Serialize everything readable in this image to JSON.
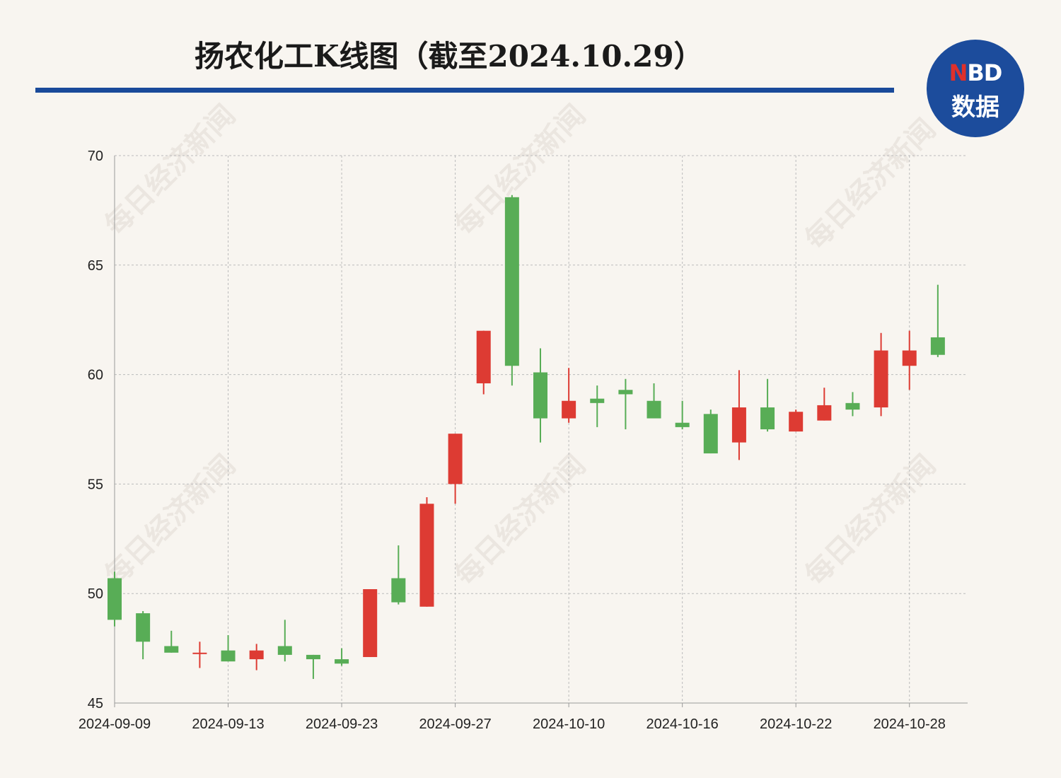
{
  "header": {
    "title": "扬农化工K线图（截至2024.10.29）"
  },
  "logo": {
    "line1_n": "N",
    "line1_rest": "BD",
    "line2": "数据"
  },
  "watermark_text": "每日经济新闻",
  "colors": {
    "up": "#dd3b33",
    "down": "#58ad56",
    "title_rule": "#1a4a9a",
    "logo_bg": "#1c4c9c",
    "background": "#f8f5f0",
    "grid": "#bbbbbb"
  },
  "chart_data": {
    "type": "candlestick",
    "title": "扬农化工K线图（截至2024.10.29）",
    "xlabel": "",
    "ylabel": "",
    "ylim": [
      45,
      70
    ],
    "yticks": [
      45,
      50,
      55,
      60,
      65,
      70
    ],
    "xtick_labels": [
      "2024-09-09",
      "2024-09-13",
      "2024-09-23",
      "2024-09-27",
      "2024-10-10",
      "2024-10-16",
      "2024-10-22",
      "2024-10-28"
    ],
    "xtick_indices": [
      0,
      4,
      8,
      12,
      16,
      20,
      24,
      28
    ],
    "grid": true,
    "legend": "none",
    "candles": [
      {
        "open": 50.7,
        "close": 48.8,
        "high": 51.0,
        "low": 48.5
      },
      {
        "open": 49.1,
        "close": 47.8,
        "high": 49.2,
        "low": 47.0
      },
      {
        "open": 47.6,
        "close": 47.3,
        "high": 48.3,
        "low": 47.3
      },
      {
        "open": 47.3,
        "close": 47.3,
        "high": 47.8,
        "low": 46.6
      },
      {
        "open": 47.4,
        "close": 46.9,
        "high": 48.1,
        "low": 46.9
      },
      {
        "open": 47.0,
        "close": 47.4,
        "high": 47.7,
        "low": 46.5
      },
      {
        "open": 47.6,
        "close": 47.2,
        "high": 48.8,
        "low": 46.9
      },
      {
        "open": 47.2,
        "close": 47.0,
        "high": 47.2,
        "low": 46.1
      },
      {
        "open": 47.0,
        "close": 46.8,
        "high": 47.5,
        "low": 46.7
      },
      {
        "open": 47.1,
        "close": 50.2,
        "high": 50.2,
        "low": 47.1
      },
      {
        "open": 50.7,
        "close": 49.6,
        "high": 52.2,
        "low": 49.5
      },
      {
        "open": 49.4,
        "close": 54.1,
        "high": 54.4,
        "low": 49.4
      },
      {
        "open": 55.0,
        "close": 57.3,
        "high": 57.3,
        "low": 54.1
      },
      {
        "open": 59.6,
        "close": 62.0,
        "high": 62.0,
        "low": 59.1
      },
      {
        "open": 68.1,
        "close": 60.4,
        "high": 68.2,
        "low": 59.5
      },
      {
        "open": 60.1,
        "close": 58.0,
        "high": 61.2,
        "low": 56.9
      },
      {
        "open": 58.0,
        "close": 58.8,
        "high": 60.3,
        "low": 57.8
      },
      {
        "open": 58.9,
        "close": 58.7,
        "high": 59.5,
        "low": 57.6
      },
      {
        "open": 59.3,
        "close": 59.1,
        "high": 59.8,
        "low": 57.5
      },
      {
        "open": 58.8,
        "close": 58.0,
        "high": 59.6,
        "low": 58.0
      },
      {
        "open": 57.8,
        "close": 57.6,
        "high": 58.8,
        "low": 57.5
      },
      {
        "open": 58.2,
        "close": 56.4,
        "high": 58.4,
        "low": 56.4
      },
      {
        "open": 56.9,
        "close": 58.5,
        "high": 60.2,
        "low": 56.1
      },
      {
        "open": 58.5,
        "close": 57.5,
        "high": 59.8,
        "low": 57.4
      },
      {
        "open": 57.4,
        "close": 58.3,
        "high": 58.4,
        "low": 57.4
      },
      {
        "open": 57.9,
        "close": 58.6,
        "high": 59.4,
        "low": 57.9
      },
      {
        "open": 58.7,
        "close": 58.4,
        "high": 59.2,
        "low": 58.1
      },
      {
        "open": 58.5,
        "close": 61.1,
        "high": 61.9,
        "low": 58.1
      },
      {
        "open": 60.4,
        "close": 61.1,
        "high": 62.0,
        "low": 59.3
      },
      {
        "open": 61.7,
        "close": 60.9,
        "high": 64.1,
        "low": 60.8
      }
    ]
  }
}
